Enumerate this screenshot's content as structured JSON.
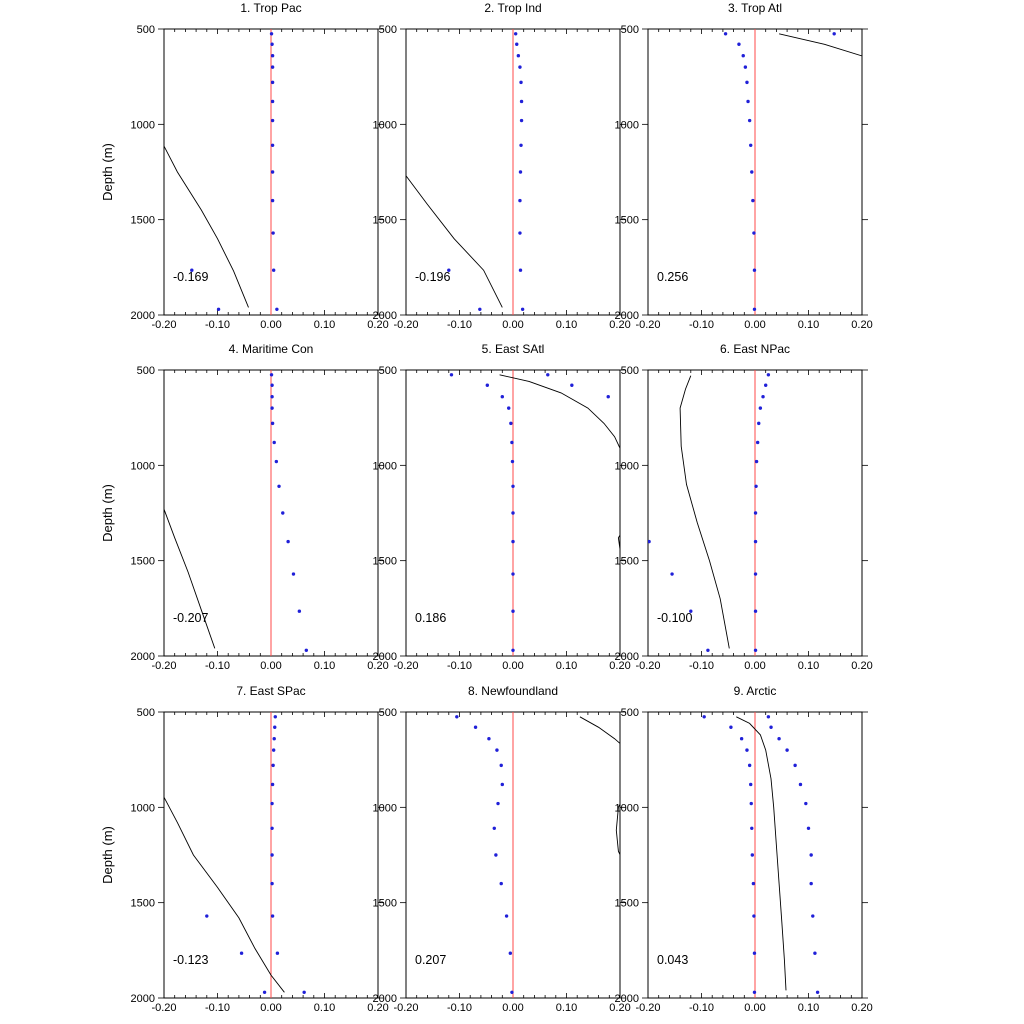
{
  "figure": {
    "ylabel": "Depth (m)"
  },
  "chart_data": [
    {
      "type": "scatter",
      "title": "1. Trop Pac",
      "correlation_label": "-0.169",
      "xlim": [
        -0.2,
        0.2
      ],
      "ylim": [
        500,
        2000
      ],
      "xticks": [
        "-0.20",
        "-0.10",
        "0.00",
        "0.10",
        "0.20"
      ],
      "yticks": [
        "500",
        "1000",
        "1500",
        "2000"
      ],
      "show_ylabel": true,
      "dots": [
        [
          0.001,
          525
        ],
        [
          0.002,
          580
        ],
        [
          0.003,
          640
        ],
        [
          0.003,
          700
        ],
        [
          0.003,
          780
        ],
        [
          0.003,
          880
        ],
        [
          0.003,
          980
        ],
        [
          0.003,
          1110
        ],
        [
          0.003,
          1250
        ],
        [
          0.003,
          1400
        ],
        [
          0.004,
          1570
        ],
        [
          0.005,
          1765
        ],
        [
          -0.148,
          1765
        ],
        [
          -0.098,
          1970
        ],
        [
          0.011,
          1970
        ]
      ],
      "curve": [
        [
          -0.21,
          1060
        ],
        [
          -0.175,
          1250
        ],
        [
          -0.13,
          1450
        ],
        [
          -0.1,
          1600
        ],
        [
          -0.07,
          1770
        ],
        [
          -0.042,
          1960
        ]
      ]
    },
    {
      "type": "scatter",
      "title": "2. Trop Ind",
      "correlation_label": "-0.196",
      "xlim": [
        -0.2,
        0.2
      ],
      "ylim": [
        500,
        2000
      ],
      "xticks": [
        "-0.20",
        "-0.10",
        "0.00",
        "0.10",
        "0.20"
      ],
      "yticks": [
        "500",
        "1000",
        "1500",
        "2000"
      ],
      "show_ylabel": false,
      "dots": [
        [
          0.005,
          525
        ],
        [
          0.007,
          580
        ],
        [
          0.01,
          640
        ],
        [
          0.013,
          700
        ],
        [
          0.015,
          780
        ],
        [
          0.016,
          880
        ],
        [
          0.016,
          980
        ],
        [
          0.015,
          1110
        ],
        [
          0.014,
          1250
        ],
        [
          0.013,
          1400
        ],
        [
          0.013,
          1570
        ],
        [
          0.014,
          1765
        ],
        [
          -0.12,
          1765
        ],
        [
          -0.062,
          1970
        ],
        [
          0.018,
          1970
        ]
      ],
      "curve": [
        [
          -0.2,
          1270
        ],
        [
          -0.16,
          1420
        ],
        [
          -0.11,
          1600
        ],
        [
          -0.055,
          1765
        ],
        [
          -0.02,
          1960
        ]
      ]
    },
    {
      "type": "scatter",
      "title": "3. Trop Atl",
      "correlation_label": "0.256",
      "xlim": [
        -0.2,
        0.2
      ],
      "ylim": [
        500,
        2000
      ],
      "xticks": [
        "-0.20",
        "-0.10",
        "0.00",
        "0.10",
        "0.20"
      ],
      "yticks": [
        "500",
        "1000",
        "1500",
        "2000"
      ],
      "show_ylabel": false,
      "dots": [
        [
          -0.055,
          525
        ],
        [
          -0.03,
          580
        ],
        [
          -0.022,
          640
        ],
        [
          -0.018,
          700
        ],
        [
          -0.015,
          780
        ],
        [
          -0.013,
          880
        ],
        [
          -0.01,
          980
        ],
        [
          -0.008,
          1110
        ],
        [
          -0.006,
          1250
        ],
        [
          -0.004,
          1400
        ],
        [
          -0.002,
          1570
        ],
        [
          -0.001,
          1765
        ],
        [
          -0.001,
          1970
        ],
        [
          0.148,
          525
        ]
      ],
      "curve": [
        [
          0.045,
          525
        ],
        [
          0.13,
          580
        ],
        [
          0.21,
          650
        ]
      ]
    },
    {
      "type": "scatter",
      "title": "4. Maritime Con",
      "correlation_label": "-0.207",
      "xlim": [
        -0.2,
        0.2
      ],
      "ylim": [
        500,
        2000
      ],
      "xticks": [
        "-0.20",
        "-0.10",
        "0.00",
        "0.10",
        "0.20"
      ],
      "yticks": [
        "500",
        "1000",
        "1500",
        "2000"
      ],
      "show_ylabel": true,
      "dots": [
        [
          0.001,
          525
        ],
        [
          0.002,
          580
        ],
        [
          0.002,
          640
        ],
        [
          0.002,
          700
        ],
        [
          0.003,
          780
        ],
        [
          0.006,
          880
        ],
        [
          0.01,
          980
        ],
        [
          0.015,
          1110
        ],
        [
          0.022,
          1250
        ],
        [
          0.032,
          1400
        ],
        [
          0.042,
          1570
        ],
        [
          0.053,
          1765
        ],
        [
          0.066,
          1970
        ]
      ],
      "curve": [
        [
          -0.2,
          1230
        ],
        [
          -0.18,
          1380
        ],
        [
          -0.155,
          1560
        ],
        [
          -0.13,
          1760
        ],
        [
          -0.105,
          1960
        ]
      ]
    },
    {
      "type": "scatter",
      "title": "5. East SAtl",
      "correlation_label": "0.186",
      "xlim": [
        -0.2,
        0.2
      ],
      "ylim": [
        500,
        2000
      ],
      "xticks": [
        "-0.20",
        "-0.10",
        "0.00",
        "0.10",
        "0.20"
      ],
      "yticks": [
        "500",
        "1000",
        "1500",
        "2000"
      ],
      "show_ylabel": false,
      "dots": [
        [
          -0.115,
          525
        ],
        [
          -0.048,
          580
        ],
        [
          -0.02,
          640
        ],
        [
          -0.008,
          700
        ],
        [
          -0.004,
          780
        ],
        [
          -0.002,
          880
        ],
        [
          -0.001,
          980
        ],
        [
          0.0,
          1110
        ],
        [
          0.0,
          1250
        ],
        [
          0.0,
          1400
        ],
        [
          0.0,
          1570
        ],
        [
          0.0,
          1765
        ],
        [
          0.0,
          1970
        ],
        [
          0.065,
          525
        ],
        [
          0.11,
          580
        ],
        [
          0.178,
          640
        ]
      ],
      "curve": [
        [
          -0.025,
          525
        ],
        [
          0.03,
          560
        ],
        [
          0.09,
          620
        ],
        [
          0.14,
          700
        ],
        [
          0.17,
          780
        ],
        [
          0.19,
          850
        ],
        [
          0.2,
          910
        ],
        [
          0.21,
          930
        ],
        [
          0.21,
          1320
        ],
        [
          0.197,
          1380
        ],
        [
          0.2,
          1440
        ],
        [
          0.21,
          1510
        ]
      ]
    },
    {
      "type": "scatter",
      "title": "6. East NPac",
      "correlation_label": "-0.100",
      "xlim": [
        -0.2,
        0.2
      ],
      "ylim": [
        500,
        2000
      ],
      "xticks": [
        "-0.20",
        "-0.10",
        "0.00",
        "0.10",
        "0.20"
      ],
      "yticks": [
        "500",
        "1000",
        "1500",
        "2000"
      ],
      "show_ylabel": false,
      "dots": [
        [
          0.025,
          525
        ],
        [
          0.02,
          580
        ],
        [
          0.015,
          640
        ],
        [
          0.01,
          700
        ],
        [
          0.007,
          780
        ],
        [
          0.005,
          880
        ],
        [
          0.003,
          980
        ],
        [
          0.002,
          1110
        ],
        [
          0.001,
          1250
        ],
        [
          0.001,
          1400
        ],
        [
          0.001,
          1570
        ],
        [
          0.001,
          1765
        ],
        [
          0.001,
          1970
        ],
        [
          -0.198,
          1400
        ],
        [
          -0.155,
          1570
        ],
        [
          -0.12,
          1765
        ],
        [
          -0.088,
          1970
        ]
      ],
      "curve": [
        [
          -0.12,
          530
        ],
        [
          -0.13,
          600
        ],
        [
          -0.14,
          700
        ],
        [
          -0.138,
          900
        ],
        [
          -0.128,
          1100
        ],
        [
          -0.108,
          1300
        ],
        [
          -0.085,
          1500
        ],
        [
          -0.065,
          1700
        ],
        [
          -0.048,
          1960
        ]
      ]
    },
    {
      "type": "scatter",
      "title": "7. East SPac",
      "correlation_label": "-0.123",
      "xlim": [
        -0.2,
        0.2
      ],
      "ylim": [
        500,
        2000
      ],
      "xticks": [
        "-0.20",
        "-0.10",
        "0.00",
        "0.10",
        "0.20"
      ],
      "yticks": [
        "500",
        "1000",
        "1500",
        "2000"
      ],
      "show_ylabel": true,
      "dots": [
        [
          0.008,
          525
        ],
        [
          0.007,
          580
        ],
        [
          0.006,
          640
        ],
        [
          0.005,
          700
        ],
        [
          0.004,
          780
        ],
        [
          0.003,
          880
        ],
        [
          0.002,
          980
        ],
        [
          0.002,
          1110
        ],
        [
          0.002,
          1250
        ],
        [
          0.002,
          1400
        ],
        [
          0.003,
          1570
        ],
        [
          0.012,
          1765
        ],
        [
          -0.12,
          1570
        ],
        [
          -0.055,
          1765
        ],
        [
          -0.012,
          1970
        ],
        [
          0.062,
          1970
        ]
      ],
      "curve": [
        [
          -0.205,
          920
        ],
        [
          -0.175,
          1080
        ],
        [
          -0.145,
          1250
        ],
        [
          -0.1,
          1420
        ],
        [
          -0.06,
          1580
        ],
        [
          -0.03,
          1740
        ],
        [
          0.0,
          1880
        ],
        [
          0.025,
          1970
        ]
      ]
    },
    {
      "type": "scatter",
      "title": "8. Newfoundland",
      "correlation_label": "0.207",
      "xlim": [
        -0.2,
        0.2
      ],
      "ylim": [
        500,
        2000
      ],
      "xticks": [
        "-0.20",
        "-0.10",
        "0.00",
        "0.10",
        "0.20"
      ],
      "yticks": [
        "500",
        "1000",
        "1500",
        "2000"
      ],
      "show_ylabel": false,
      "dots": [
        [
          -0.105,
          525
        ],
        [
          -0.07,
          580
        ],
        [
          -0.045,
          640
        ],
        [
          -0.03,
          700
        ],
        [
          -0.022,
          780
        ],
        [
          -0.02,
          880
        ],
        [
          -0.028,
          980
        ],
        [
          -0.035,
          1110
        ],
        [
          -0.032,
          1250
        ],
        [
          -0.022,
          1400
        ],
        [
          -0.012,
          1570
        ],
        [
          -0.005,
          1765
        ],
        [
          -0.002,
          1970
        ]
      ],
      "curve": [
        [
          0.125,
          525
        ],
        [
          0.16,
          580
        ],
        [
          0.19,
          640
        ],
        [
          0.21,
          690
        ],
        [
          0.21,
          930
        ],
        [
          0.197,
          1000
        ],
        [
          0.193,
          1120
        ],
        [
          0.197,
          1230
        ],
        [
          0.21,
          1310
        ]
      ]
    },
    {
      "type": "scatter",
      "title": "9. Arctic",
      "correlation_label": "0.043",
      "xlim": [
        -0.2,
        0.2
      ],
      "ylim": [
        500,
        2000
      ],
      "xticks": [
        "-0.20",
        "-0.10",
        "0.00",
        "0.10",
        "0.20"
      ],
      "yticks": [
        "500",
        "1000",
        "1500",
        "2000"
      ],
      "show_ylabel": false,
      "dots": [
        [
          -0.095,
          525
        ],
        [
          -0.045,
          580
        ],
        [
          -0.025,
          640
        ],
        [
          -0.015,
          700
        ],
        [
          -0.01,
          780
        ],
        [
          -0.008,
          880
        ],
        [
          -0.007,
          980
        ],
        [
          -0.006,
          1110
        ],
        [
          -0.005,
          1250
        ],
        [
          -0.003,
          1400
        ],
        [
          -0.002,
          1570
        ],
        [
          -0.001,
          1765
        ],
        [
          -0.001,
          1970
        ],
        [
          0.025,
          525
        ],
        [
          0.03,
          580
        ],
        [
          0.045,
          640
        ],
        [
          0.06,
          700
        ],
        [
          0.075,
          780
        ],
        [
          0.085,
          880
        ],
        [
          0.095,
          980
        ],
        [
          0.1,
          1110
        ],
        [
          0.105,
          1250
        ],
        [
          0.105,
          1400
        ],
        [
          0.108,
          1570
        ],
        [
          0.112,
          1765
        ],
        [
          0.117,
          1970
        ]
      ],
      "curve": [
        [
          -0.035,
          525
        ],
        [
          -0.01,
          560
        ],
        [
          0.01,
          620
        ],
        [
          0.02,
          700
        ],
        [
          0.03,
          850
        ],
        [
          0.035,
          1000
        ],
        [
          0.04,
          1200
        ],
        [
          0.045,
          1400
        ],
        [
          0.05,
          1600
        ],
        [
          0.055,
          1800
        ],
        [
          0.058,
          1960
        ]
      ]
    }
  ]
}
